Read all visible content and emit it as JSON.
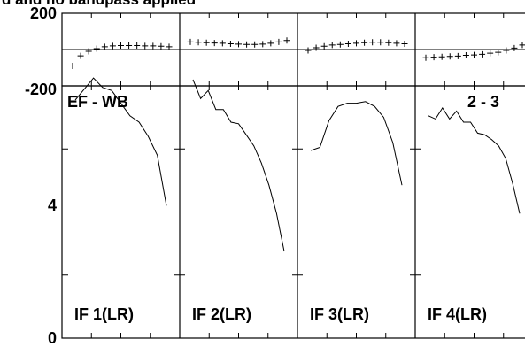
{
  "title": "d and no bandpass applied",
  "top_panel": {
    "y_ticks": [
      "200",
      "-200"
    ]
  },
  "bottom_panel": {
    "y_ticks": [
      "4",
      "0"
    ],
    "left_label": "EF - WB",
    "right_label": "2 - 3"
  },
  "chart_data": {
    "type": "line",
    "title": "d and no bandpass applied",
    "panel_labels": [
      "IF 1(LR)",
      "IF 2(LR)",
      "IF 3(LR)",
      "IF 4(LR)"
    ],
    "phase_ylim": [
      -200,
      200
    ],
    "amp_ylim": [
      0,
      8
    ],
    "phase_series": [
      {
        "values": [
          -90,
          -35,
          -10,
          5,
          15,
          20,
          22,
          22,
          22,
          20,
          20,
          18,
          15
        ]
      },
      {
        "values": [
          42,
          40,
          38,
          36,
          35,
          32,
          30,
          28,
          28,
          30,
          35,
          42,
          50
        ]
      },
      {
        "values": [
          -5,
          10,
          18,
          25,
          28,
          32,
          35,
          38,
          40,
          40,
          38,
          35,
          32
        ]
      },
      {
        "values": [
          -45,
          -42,
          -40,
          -38,
          -36,
          -32,
          -30,
          -26,
          -20,
          -15,
          -5,
          8,
          25
        ]
      }
    ],
    "amp_series": [
      {
        "values": [
          7.55,
          7.9,
          8.25,
          7.95,
          7.85,
          7.45,
          7.05,
          6.85,
          6.4,
          5.8,
          4.2
        ]
      },
      {
        "values": [
          8.2,
          7.6,
          7.85,
          7.25,
          7.25,
          6.85,
          6.8,
          6.45,
          6.1,
          5.55,
          4.85,
          3.95,
          2.75
        ]
      },
      {
        "values": [
          5.95,
          6.05,
          6.9,
          7.35,
          7.45,
          7.45,
          7.5,
          7.35,
          7.0,
          6.2,
          4.85
        ]
      },
      {
        "values": [
          7.05,
          6.95,
          7.3,
          6.95,
          7.2,
          6.85,
          6.85,
          6.5,
          6.45,
          6.3,
          6.1,
          5.7,
          4.9,
          3.95
        ]
      }
    ]
  }
}
